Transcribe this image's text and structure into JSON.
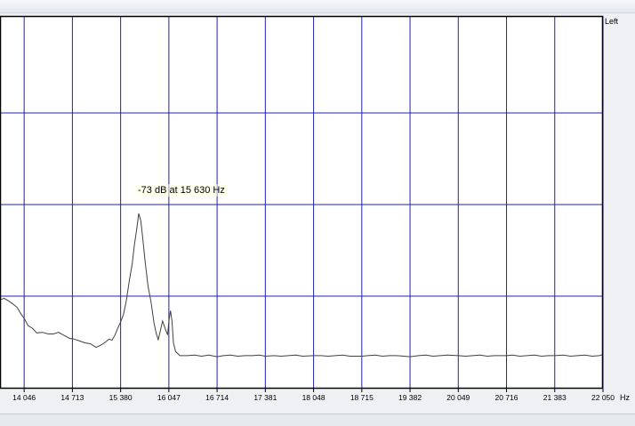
{
  "window": {
    "channel_label": "Left"
  },
  "tooltip": {
    "text": "-73 dB at 15 630 Hz"
  },
  "colors": {
    "plot_background": "#ffffff",
    "grid": "#2020b0",
    "series": "#404040",
    "border": "#000000"
  },
  "chart_data": {
    "type": "line",
    "title": "",
    "xlabel": "Hz",
    "ylabel": "",
    "channel": "Left",
    "x_unit": "Hz",
    "xlim": [
      13712,
      22050
    ],
    "x_ticks": [
      14046,
      14713,
      15380,
      16047,
      16714,
      17381,
      18048,
      18715,
      19382,
      20049,
      20716,
      21383,
      22050
    ],
    "x_tick_labels": [
      "14 046",
      "14 713",
      "15 380",
      "16 047",
      "16 714",
      "17 381",
      "18 048",
      "18 715",
      "19 382",
      "20 049",
      "20 716",
      "21 383",
      "22 050"
    ],
    "grid": true,
    "series": [
      {
        "x": [
          13712,
          13770,
          13830,
          13890,
          13950,
          14000,
          14046,
          14100,
          14160,
          14220,
          14300,
          14380,
          14450,
          14520,
          14600,
          14680,
          14713,
          14800,
          14880,
          14960,
          15040,
          15100,
          15160,
          15220,
          15260,
          15300,
          15340,
          15380,
          15420,
          15460,
          15500,
          15540,
          15570,
          15600,
          15630,
          15660,
          15690,
          15720,
          15760,
          15800,
          15840,
          15870,
          15900,
          15930,
          15960,
          16000,
          16030,
          16047,
          16070,
          16090,
          16110,
          16140,
          16200,
          16300,
          16400,
          16500,
          16600,
          16714,
          16800,
          16900,
          17000,
          17100,
          17200,
          17300,
          17381,
          17500,
          17600,
          17700,
          17800,
          17900,
          18048,
          18150,
          18250,
          18350,
          18450,
          18550,
          18715,
          18800,
          18900,
          19000,
          19100,
          19200,
          19300,
          19382,
          19500,
          19600,
          19700,
          19800,
          19900,
          20049,
          20150,
          20250,
          20350,
          20450,
          20550,
          20716,
          20800,
          20900,
          21000,
          21100,
          21200,
          21300,
          21383,
          21500,
          21600,
          21700,
          21800,
          21900,
          22000,
          22050
        ],
        "y": [
          -89.7,
          -89.4,
          -89.9,
          -90.5,
          -91.2,
          -92.4,
          -93.3,
          -94.7,
          -95.2,
          -96.1,
          -96.0,
          -96.3,
          -96.3,
          -96.0,
          -96.6,
          -97.2,
          -97.2,
          -97.6,
          -98.0,
          -98.2,
          -98.9,
          -98.5,
          -98.0,
          -97.3,
          -97.5,
          -96.6,
          -95.2,
          -94.0,
          -92.5,
          -89.8,
          -86.0,
          -82.8,
          -79.1,
          -76.3,
          -73.0,
          -74.5,
          -78.3,
          -82.5,
          -87.1,
          -90.1,
          -94.0,
          -96.1,
          -97.4,
          -95.6,
          -93.8,
          -95.4,
          -96.5,
          -93.8,
          -91.8,
          -93.8,
          -98.0,
          -99.7,
          -100.5,
          -100.5,
          -100.4,
          -100.6,
          -100.4,
          -100.7,
          -100.5,
          -100.4,
          -100.6,
          -100.5,
          -100.5,
          -100.4,
          -100.6,
          -100.5,
          -100.6,
          -100.5,
          -100.4,
          -100.6,
          -100.5,
          -100.5,
          -100.6,
          -100.5,
          -100.4,
          -100.6,
          -100.6,
          -100.5,
          -100.4,
          -100.6,
          -100.5,
          -100.5,
          -100.6,
          -100.7,
          -100.5,
          -100.4,
          -100.6,
          -100.5,
          -100.4,
          -100.5,
          -100.6,
          -100.5,
          -100.4,
          -100.6,
          -100.5,
          -100.5,
          -100.4,
          -100.6,
          -100.5,
          -100.4,
          -100.6,
          -100.5,
          -100.5,
          -100.4,
          -100.6,
          -100.5,
          -100.4,
          -100.6,
          -100.5,
          -100.3
        ]
      }
    ],
    "annotation": {
      "text": "-73 dB at 15 630 Hz",
      "x": 15630,
      "y": -73
    }
  }
}
